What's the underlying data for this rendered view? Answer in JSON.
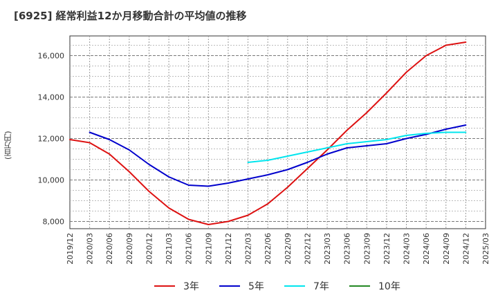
{
  "chart_data": {
    "type": "line",
    "title": "[6925]  経常利益12か月移動合計の平均値の推移",
    "ylabel": "(百万円)",
    "xlabel": "",
    "x_ticks": [
      "2019/12",
      "2020/03",
      "2020/06",
      "2020/09",
      "2020/12",
      "2021/03",
      "2021/06",
      "2021/09",
      "2021/12",
      "2022/03",
      "2022/06",
      "2022/09",
      "2022/12",
      "2023/03",
      "2023/06",
      "2023/09",
      "2023/12",
      "2024/03",
      "2024/06",
      "2024/09",
      "2024/12",
      "2025/03"
    ],
    "y_ticks": [
      8000,
      10000,
      12000,
      14000,
      16000
    ],
    "y_tick_labels": [
      "8,000",
      "10,000",
      "12,000",
      "14,000",
      "16,000"
    ],
    "ylim": [
      7650,
      16950
    ],
    "grid": true,
    "legend_position": "bottom",
    "series": [
      {
        "name": "3年",
        "color": "#dd1111",
        "x": [
          "2019/12",
          "2020/03",
          "2020/06",
          "2020/09",
          "2020/12",
          "2021/03",
          "2021/06",
          "2021/09",
          "2021/12",
          "2022/03",
          "2022/06",
          "2022/09",
          "2022/12",
          "2023/03",
          "2023/06",
          "2023/09",
          "2023/12",
          "2024/03",
          "2024/06",
          "2024/09",
          "2024/12"
        ],
        "values": [
          11950,
          11800,
          11250,
          10400,
          9450,
          8650,
          8100,
          7850,
          8000,
          8300,
          8850,
          9650,
          10550,
          11450,
          12400,
          13250,
          14200,
          15200,
          16000,
          16500,
          16650
        ]
      },
      {
        "name": "5年",
        "color": "#0000cc",
        "x": [
          "2020/03",
          "2020/06",
          "2020/09",
          "2020/12",
          "2021/03",
          "2021/06",
          "2021/09",
          "2021/12",
          "2022/03",
          "2022/06",
          "2022/09",
          "2022/12",
          "2023/03",
          "2023/06",
          "2023/09",
          "2023/12",
          "2024/03",
          "2024/06",
          "2024/09",
          "2024/12"
        ],
        "values": [
          12300,
          11950,
          11450,
          10750,
          10150,
          9750,
          9700,
          9850,
          10050,
          10250,
          10500,
          10850,
          11250,
          11550,
          11650,
          11750,
          12000,
          12200,
          12450,
          12650
        ]
      },
      {
        "name": "7年",
        "color": "#00e5ee",
        "x": [
          "2022/03",
          "2022/06",
          "2022/09",
          "2022/12",
          "2023/03",
          "2023/06",
          "2023/09",
          "2023/12",
          "2024/03",
          "2024/06",
          "2024/09",
          "2024/12"
        ],
        "values": [
          10850,
          10950,
          11150,
          11350,
          11550,
          11750,
          11850,
          11950,
          12150,
          12250,
          12300,
          12300
        ]
      },
      {
        "name": "10年",
        "color": "#228822",
        "x": [],
        "values": []
      }
    ]
  }
}
